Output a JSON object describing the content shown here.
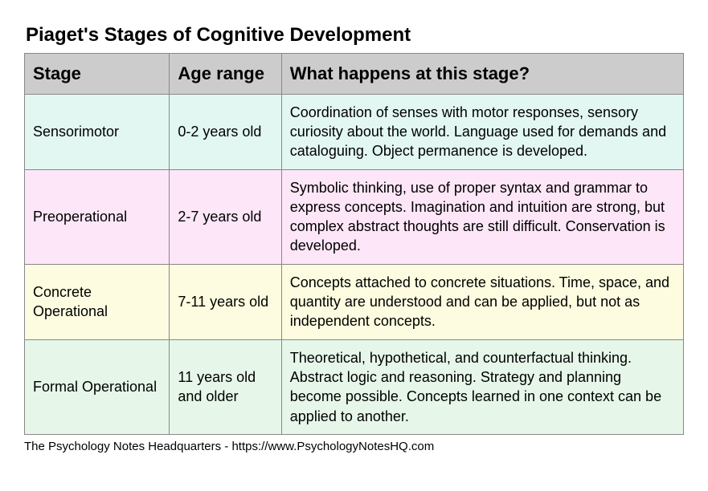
{
  "title": "Piaget's Stages of Cognitive Development",
  "footer": "The Psychology Notes Headquarters - https://www.PsychologyNotesHQ.com",
  "colors": {
    "header_bg": "#cccccc",
    "border": "#888888",
    "row_bg": [
      "#e2f7f2",
      "#fce6f7",
      "#fdfce0",
      "#e6f7e9"
    ],
    "text": "#000000",
    "page_bg": "#ffffff"
  },
  "typography": {
    "font_family": "Arial",
    "title_fontsize": 24,
    "header_fontsize": 22,
    "cell_fontsize": 18,
    "footer_fontsize": 15
  },
  "table": {
    "type": "table",
    "column_widths_pct": [
      22,
      17,
      61
    ],
    "columns": [
      "Stage",
      "Age range",
      " What happens at this stage?"
    ],
    "rows": [
      {
        "stage": "Sensorimotor",
        "age": "0-2 years old",
        "desc": "Coordination of senses with motor responses, sensory curiosity about the world. Language used for demands and cataloguing. Object permanence is developed."
      },
      {
        "stage": "Preoperational",
        "age": "2-7 years old",
        "desc": "Symbolic thinking, use of proper syntax and grammar to express concepts. Imagination and intuition are strong, but complex abstract thoughts are still difficult. Conservation is developed."
      },
      {
        "stage": "Concrete Operational",
        "age": "7-11 years old",
        "desc": "Concepts attached to concrete situations. Time, space, and quantity are understood and can be applied, but not as independent concepts."
      },
      {
        "stage": "Formal Operational",
        "age": "11 years old and older",
        "desc": "Theoretical, hypothetical, and counterfactual thinking. Abstract logic and reasoning. Strategy and planning become possible. Concepts learned in one context can be applied to another."
      }
    ]
  }
}
